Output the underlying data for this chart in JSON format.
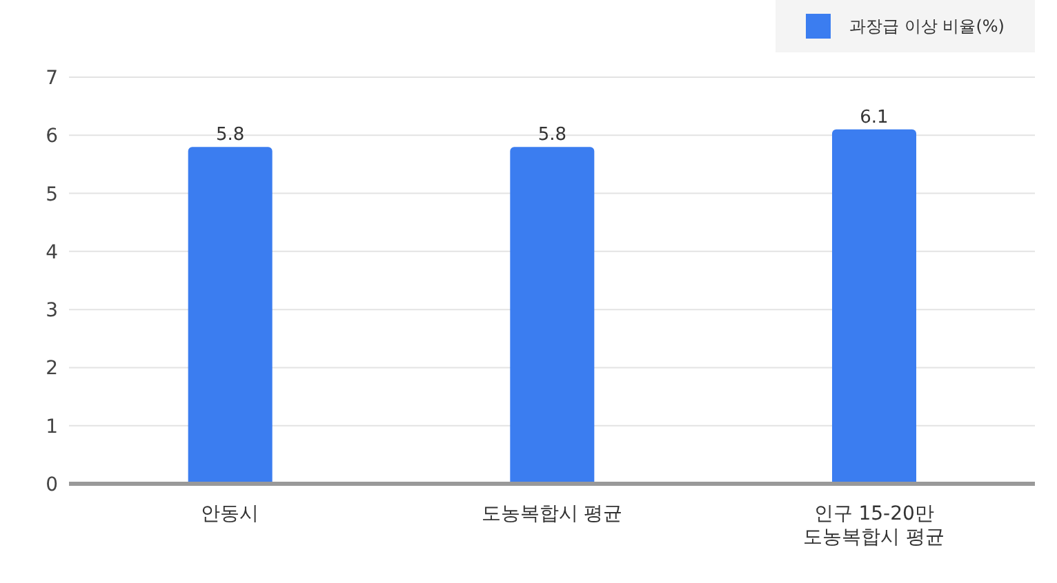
{
  "chart_data": {
    "type": "bar",
    "categories": [
      "안동시",
      "도농복합시 평균",
      "인구 15-20만\n도농복합시 평균"
    ],
    "series": [
      {
        "name": "과장급 이상 비율(%)",
        "color": "#3b7df0",
        "values": [
          5.8,
          5.8,
          6.1
        ]
      }
    ],
    "ylim": [
      0,
      7
    ],
    "yticks": [
      0,
      1,
      2,
      3,
      4,
      5,
      6,
      7
    ],
    "grid": "y",
    "legend": "top right",
    "data_labels": true
  }
}
